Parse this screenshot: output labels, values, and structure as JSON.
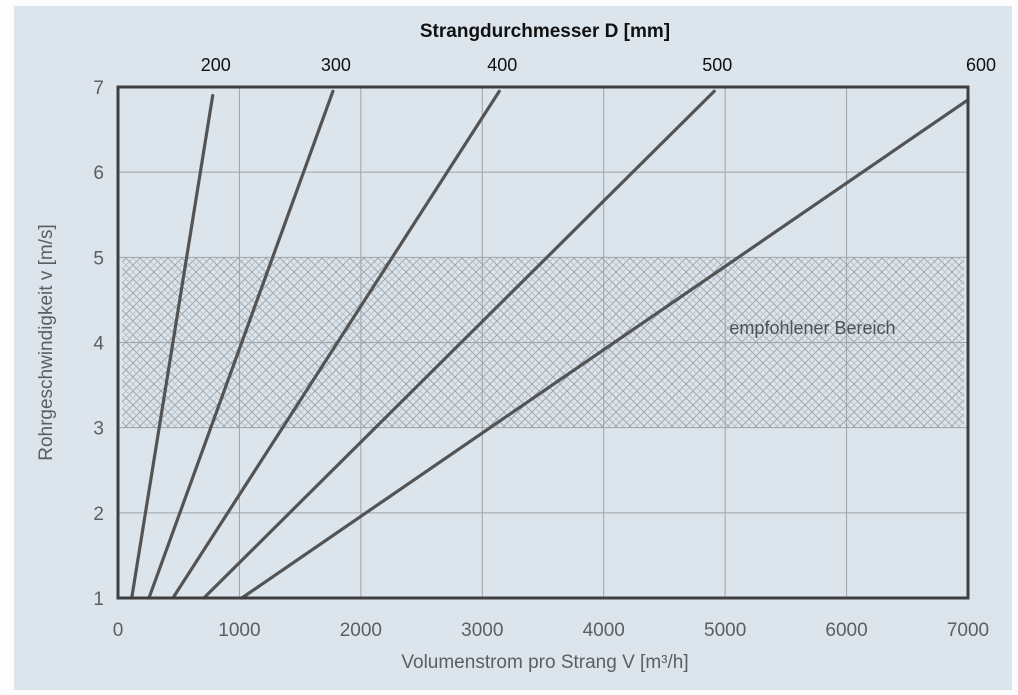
{
  "chart_data": {
    "type": "line",
    "title": "Strangdurchmesser D [mm]",
    "xlabel": "Volumenstrom pro Strang V [m³/h]",
    "ylabel": "Rohrgeschwindigkeit v [m/s]",
    "xlim": [
      0,
      7000
    ],
    "ylim": [
      1,
      7
    ],
    "x_ticks": [
      "0",
      "1000",
      "2000",
      "3000",
      "4000",
      "5000",
      "6000",
      "7000"
    ],
    "y_ticks": [
      "1",
      "2",
      "3",
      "4",
      "5",
      "6",
      "7"
    ],
    "grid": true,
    "series": [
      {
        "name": "200",
        "points": [
          [
            113,
            1.0
          ],
          [
            780,
            6.9
          ]
        ]
      },
      {
        "name": "300",
        "points": [
          [
            255,
            1.0
          ],
          [
            1770,
            6.95
          ]
        ]
      },
      {
        "name": "400",
        "points": [
          [
            452,
            1.0
          ],
          [
            3140,
            6.95
          ]
        ]
      },
      {
        "name": "500",
        "points": [
          [
            707,
            1.0
          ],
          [
            4910,
            6.95
          ]
        ]
      },
      {
        "name": "600",
        "points": [
          [
            1020,
            1.0
          ],
          [
            7000,
            6.85
          ]
        ]
      }
    ],
    "top_labels": [
      {
        "text": "200",
        "x": 780
      },
      {
        "text": "300",
        "x": 1770
      },
      {
        "text": "400",
        "x": 3140
      },
      {
        "text": "500",
        "x": 4910
      },
      {
        "text": "600",
        "x": 7000
      }
    ],
    "recommended_range": {
      "label": "empfohlener Bereich",
      "y_from": 3,
      "y_to": 5,
      "label_x": 5200,
      "label_y": 4.1
    },
    "colors": {
      "line": "#545454",
      "grid": "#9ea3a8",
      "frame": "#3f3f3f",
      "hatch": "#9aa0a6",
      "background": "#dce5ec"
    }
  }
}
